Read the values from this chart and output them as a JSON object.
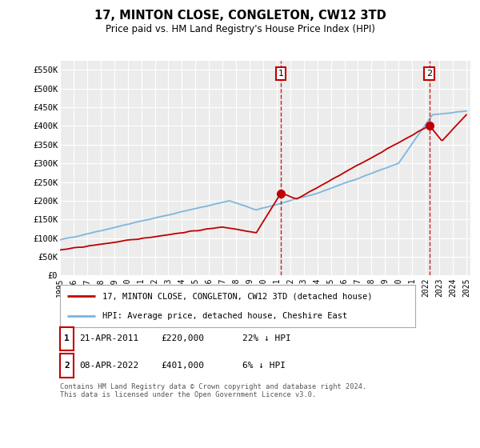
{
  "title": "17, MINTON CLOSE, CONGLETON, CW12 3TD",
  "subtitle": "Price paid vs. HM Land Registry's House Price Index (HPI)",
  "red_label": "17, MINTON CLOSE, CONGLETON, CW12 3TD (detached house)",
  "blue_label": "HPI: Average price, detached house, Cheshire East",
  "footnote": "Contains HM Land Registry data © Crown copyright and database right 2024.\nThis data is licensed under the Open Government Licence v3.0.",
  "transactions": [
    {
      "num": 1,
      "date": "21-APR-2011",
      "price": "£220,000",
      "hpi": "22% ↓ HPI",
      "year": 2011.3,
      "value": 220000
    },
    {
      "num": 2,
      "date": "08-APR-2022",
      "price": "£401,000",
      "hpi": "6% ↓ HPI",
      "year": 2022.27,
      "value": 401000
    }
  ],
  "ylim": [
    0,
    575000
  ],
  "yticks": [
    0,
    50000,
    100000,
    150000,
    200000,
    250000,
    300000,
    350000,
    400000,
    450000,
    500000,
    550000
  ],
  "ytick_labels": [
    "£0",
    "£50K",
    "£100K",
    "£150K",
    "£200K",
    "£250K",
    "£300K",
    "£350K",
    "£400K",
    "£450K",
    "£500K",
    "£550K"
  ],
  "blue_color": "#6aaddc",
  "red_color": "#c00000",
  "vline_color": "#c00000",
  "bg_color": "#ffffff",
  "plot_bg_color": "#ececec",
  "grid_color": "#ffffff"
}
